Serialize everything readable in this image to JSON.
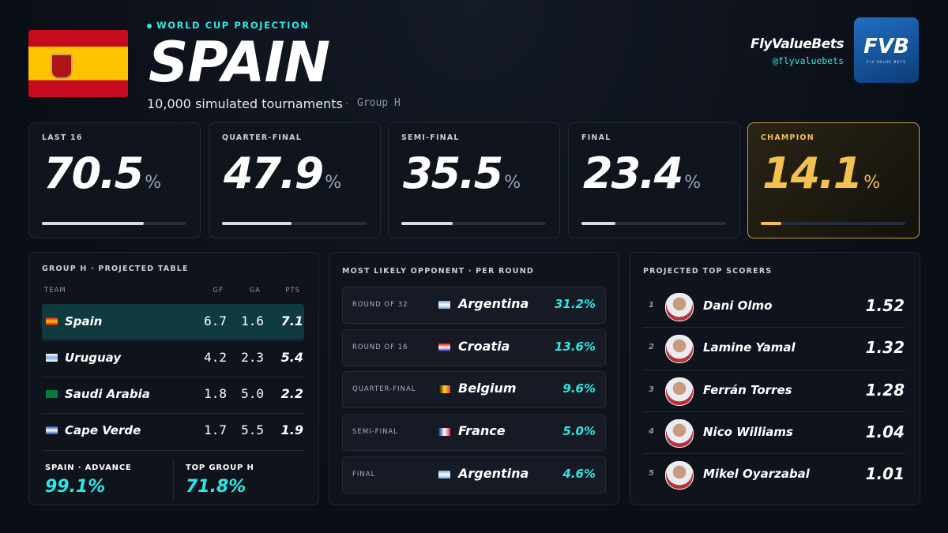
{
  "header": {
    "eyebrow": "WORLD CUP PROJECTION",
    "title": "SPAIN",
    "subtitle": "10,000 simulated tournaments",
    "separator": "·",
    "group": "Group H"
  },
  "brand": {
    "name": "FlyValueBets",
    "handle": "@flyvaluebets",
    "logo": "FVB",
    "logo_tagline": "FLY VALUE BETS"
  },
  "stages": [
    {
      "label": "LAST 16",
      "value": 70.5,
      "unit": "%"
    },
    {
      "label": "QUARTER-FINAL",
      "value": 47.9,
      "unit": "%"
    },
    {
      "label": "SEMI-FINAL",
      "value": 35.5,
      "unit": "%"
    },
    {
      "label": "FINAL",
      "value": 23.4,
      "unit": "%"
    },
    {
      "label": "CHAMPION",
      "value": 14.1,
      "unit": "%"
    }
  ],
  "group_table": {
    "title": "GROUP H · PROJECTED TABLE",
    "columns": [
      "TEAM",
      "GF",
      "GA",
      "PTS"
    ],
    "rows": [
      [
        "Spain",
        "6.7",
        "1.6",
        "7.1"
      ],
      [
        "Uruguay",
        "4.2",
        "2.3",
        "5.4"
      ],
      [
        "Saudi Arabia",
        "1.8",
        "5.0",
        "2.2"
      ],
      [
        "Cape Verde",
        "1.7",
        "5.5",
        "1.9"
      ]
    ],
    "summary": [
      {
        "label": "SPAIN · ADVANCE",
        "value": "99.1%"
      },
      {
        "label": "TOP GROUP H",
        "value": "71.8%"
      }
    ]
  },
  "opponents": {
    "title": "MOST LIKELY OPPONENT · PER ROUND",
    "rows": [
      {
        "round": "ROUND OF 32",
        "team": "Argentina",
        "probability": "31.2%"
      },
      {
        "round": "ROUND OF 16",
        "team": "Croatia",
        "probability": "13.6%"
      },
      {
        "round": "QUARTER-FINAL",
        "team": "Belgium",
        "probability": "9.6%"
      },
      {
        "round": "SEMI-FINAL",
        "team": "France",
        "probability": "5.0%"
      },
      {
        "round": "FINAL",
        "team": "Argentina",
        "probability": "4.6%"
      }
    ]
  },
  "scorers": {
    "title": "PROJECTED TOP SCORERS",
    "rows": [
      {
        "rank": 1,
        "name": "Dani Olmo",
        "goals": "1.52"
      },
      {
        "rank": 2,
        "name": "Lamine Yamal",
        "goals": "1.32"
      },
      {
        "rank": 3,
        "name": "Ferrán Torres",
        "goals": "1.28"
      },
      {
        "rank": 4,
        "name": "Nico Williams",
        "goals": "1.04"
      },
      {
        "rank": 5,
        "name": "Mikel Oyarzabal",
        "goals": "1.01"
      }
    ]
  }
}
